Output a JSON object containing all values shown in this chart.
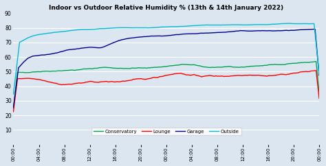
{
  "title": "Indoor vs Outdoor Relative Humidity % (13th & 14th January 2022)",
  "ylim": [
    0,
    90
  ],
  "yticks": [
    10.0,
    20.0,
    30.0,
    40.0,
    50.0,
    60.0,
    70.0,
    80.0,
    90.0
  ],
  "xtick_labels": [
    "00:00",
    "04:00",
    "08:00",
    "12:00",
    "16:00",
    "20:00",
    "00:00",
    "04:00",
    "08:00",
    "12:00",
    "16:00",
    "20:00",
    "00:00"
  ],
  "n_points": 300,
  "conservatory_color": "#00a550",
  "lounge_color": "#ff0000",
  "garage_color": "#00008b",
  "outside_color": "#00bcd4",
  "bg_color": "#dce6f1",
  "plot_bg": "#dce6f1",
  "grid_color": "#ffffff",
  "legend_labels": [
    "Conservatory",
    "Lounge",
    "Garage",
    "Outside"
  ]
}
